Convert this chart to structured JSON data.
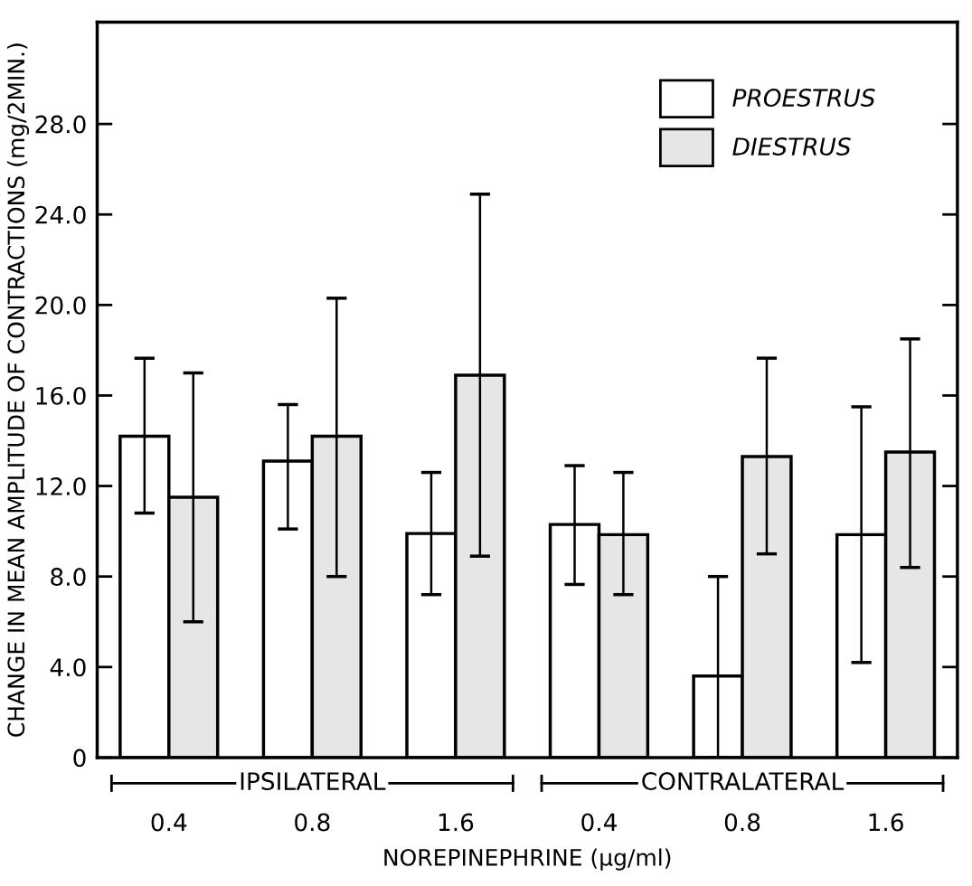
{
  "chart_data": {
    "type": "bar",
    "ylabel": "CHANGE IN MEAN AMPLITUDE OF CONTRACTIONS (mg/2MIN.)",
    "xlabel": "NOREPINEPHRINE (µg/ml)",
    "categories": [
      "0.4",
      "0.8",
      "1.6",
      "0.4",
      "0.8",
      "1.6"
    ],
    "series": [
      {
        "name": "PROESTRUS",
        "color": "#ffffff",
        "values": [
          14.2,
          13.1,
          9.9,
          10.3,
          3.6,
          9.85
        ],
        "errors": [
          [
            10.8,
            17.65
          ],
          [
            10.1,
            15.6
          ],
          [
            7.2,
            12.6
          ],
          [
            7.65,
            12.9
          ],
          [
            0.0,
            8.0
          ],
          [
            4.2,
            15.5
          ]
        ]
      },
      {
        "name": "DIESTRUS",
        "color": "#e6e6e6",
        "values": [
          11.5,
          14.2,
          16.9,
          9.85,
          13.3,
          13.5
        ],
        "errors": [
          [
            6.0,
            17.0
          ],
          [
            8.0,
            20.3
          ],
          [
            8.9,
            24.9
          ],
          [
            7.2,
            12.6
          ],
          [
            9.0,
            17.65
          ],
          [
            8.4,
            18.5
          ]
        ]
      }
    ],
    "annotations": [
      "IPSILATERAL",
      "CONTRALATERAL"
    ],
    "ylim": [
      0,
      32.5
    ],
    "yticks": [
      0,
      {
        "value": 4,
        "label": "4.0"
      },
      {
        "value": 8,
        "label": "8.0"
      },
      {
        "value": 12,
        "label": "12.0"
      },
      {
        "value": 16,
        "label": "16.0"
      },
      {
        "value": 20,
        "label": "20.0"
      },
      {
        "value": 24,
        "label": "24.0"
      },
      {
        "value": 28,
        "label": "28.0"
      }
    ],
    "legend": "top right",
    "grid": false
  }
}
